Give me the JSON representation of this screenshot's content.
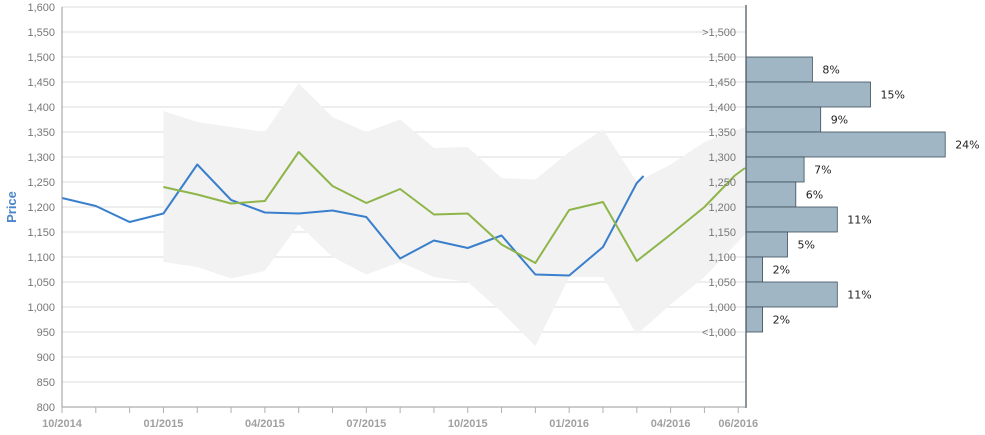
{
  "chart_data": {
    "type": "line",
    "ylabel": "Price",
    "ylim": [
      800,
      1600
    ],
    "ytick_step": 50,
    "x_ticks": [
      "10/2014",
      "01/2015",
      "04/2015",
      "07/2015",
      "10/2015",
      "01/2016",
      "04/2016",
      "06/2016"
    ],
    "x_tick_months": [
      0,
      3,
      6,
      9,
      12,
      15,
      18,
      20
    ],
    "xlim_months": [
      0,
      20.2
    ],
    "grid": true,
    "colors": {
      "blue_series": "#3a7fcc",
      "green_series": "#8eb54a",
      "band": "#f2f2f2",
      "histogram": "#a0b6c4",
      "histogram_edge": "#3d4f5c"
    },
    "series": [
      {
        "color": "#3a7fcc",
        "points": [
          [
            0,
            1218
          ],
          [
            1,
            1202
          ],
          [
            2,
            1170
          ],
          [
            3,
            1187
          ],
          [
            4,
            1285
          ],
          [
            5,
            1214
          ],
          [
            6,
            1189
          ],
          [
            7,
            1187
          ],
          [
            8,
            1193
          ],
          [
            9,
            1180
          ],
          [
            10,
            1097
          ],
          [
            11,
            1133
          ],
          [
            12,
            1118
          ],
          [
            13,
            1143
          ],
          [
            14,
            1065
          ],
          [
            15,
            1063
          ],
          [
            16,
            1120
          ],
          [
            17,
            1248
          ],
          [
            17.2,
            1262
          ]
        ]
      },
      {
        "color": "#8eb54a",
        "points": [
          [
            3,
            1240
          ],
          [
            4,
            1225
          ],
          [
            5,
            1207
          ],
          [
            6,
            1212
          ],
          [
            7,
            1310
          ],
          [
            8,
            1242
          ],
          [
            9,
            1208
          ],
          [
            10,
            1236
          ],
          [
            11,
            1185
          ],
          [
            12,
            1187
          ],
          [
            13,
            1125
          ],
          [
            14,
            1088
          ],
          [
            15,
            1194
          ],
          [
            16,
            1210
          ],
          [
            17,
            1092
          ],
          [
            18,
            1145
          ],
          [
            19,
            1200
          ],
          [
            19.9,
            1263
          ],
          [
            20.2,
            1278
          ]
        ]
      }
    ],
    "band": {
      "upper": [
        [
          3,
          1392
        ],
        [
          4,
          1370
        ],
        [
          5,
          1360
        ],
        [
          6,
          1350
        ],
        [
          7,
          1447
        ],
        [
          8,
          1380
        ],
        [
          9,
          1350
        ],
        [
          10,
          1375
        ],
        [
          11,
          1318
        ],
        [
          12,
          1320
        ],
        [
          13,
          1258
        ],
        [
          14,
          1255
        ],
        [
          15,
          1310
        ],
        [
          16,
          1355
        ],
        [
          17,
          1250
        ],
        [
          18,
          1285
        ],
        [
          19,
          1330
        ],
        [
          20.2,
          1360
        ]
      ],
      "lower": [
        [
          3,
          1090
        ],
        [
          4,
          1080
        ],
        [
          5,
          1057
        ],
        [
          6,
          1072
        ],
        [
          7,
          1165
        ],
        [
          8,
          1100
        ],
        [
          9,
          1065
        ],
        [
          10,
          1090
        ],
        [
          11,
          1060
        ],
        [
          12,
          1050
        ],
        [
          13,
          990
        ],
        [
          14,
          922
        ],
        [
          15,
          1060
        ],
        [
          16,
          1060
        ],
        [
          17,
          945
        ],
        [
          18,
          1005
        ],
        [
          19,
          1060
        ],
        [
          20.2,
          1145
        ]
      ]
    },
    "histogram": {
      "labels": [
        ">1,500",
        "1,500",
        "1,450",
        "1,400",
        "1,350",
        "1,300",
        "1,250",
        "1,200",
        "1,150",
        "1,100",
        "1,050",
        "1,000",
        "<1,000"
      ],
      "bins": [
        {
          "low": 1450,
          "high": 1500,
          "percent": 8,
          "label": "8%"
        },
        {
          "low": 1400,
          "high": 1450,
          "percent": 15,
          "label": "15%"
        },
        {
          "low": 1350,
          "high": 1400,
          "percent": 9,
          "label": "9%"
        },
        {
          "low": 1300,
          "high": 1350,
          "percent": 24,
          "label": "24%"
        },
        {
          "low": 1250,
          "high": 1300,
          "percent": 7,
          "label": "7%"
        },
        {
          "low": 1200,
          "high": 1250,
          "percent": 6,
          "label": "6%"
        },
        {
          "low": 1150,
          "high": 1200,
          "percent": 11,
          "label": "11%"
        },
        {
          "low": 1100,
          "high": 1150,
          "percent": 5,
          "label": "5%"
        },
        {
          "low": 1050,
          "high": 1100,
          "percent": 2,
          "label": "2%"
        },
        {
          "low": 1000,
          "high": 1050,
          "percent": 11,
          "label": "11%"
        },
        {
          "low": 950,
          "high": 1000,
          "percent": 2,
          "label": "2%"
        }
      ]
    }
  }
}
